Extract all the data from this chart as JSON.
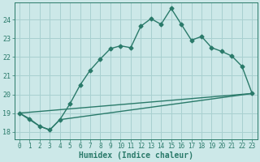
{
  "xlabel": "Humidex (Indice chaleur)",
  "bg_color": "#cce8e8",
  "grid_color": "#a8d0d0",
  "line_color": "#2a7a6a",
  "ylim": [
    17.6,
    24.9
  ],
  "xlim": [
    -0.5,
    23.5
  ],
  "yticks": [
    18,
    19,
    20,
    21,
    22,
    23,
    24
  ],
  "xticks": [
    0,
    1,
    2,
    3,
    4,
    5,
    6,
    7,
    8,
    9,
    10,
    11,
    12,
    13,
    14,
    15,
    16,
    17,
    18,
    19,
    20,
    21,
    22,
    23
  ],
  "line1_x": [
    0,
    1,
    2,
    3,
    4,
    5,
    6,
    7,
    8,
    9,
    10,
    11,
    12,
    13,
    14,
    15,
    16,
    17,
    18,
    19,
    20,
    21,
    22,
    23
  ],
  "line1_y": [
    19.0,
    18.7,
    18.3,
    18.1,
    18.65,
    19.5,
    20.5,
    21.3,
    21.9,
    22.45,
    22.6,
    22.5,
    23.65,
    24.05,
    23.75,
    24.6,
    23.75,
    22.9,
    23.1,
    22.5,
    22.3,
    22.05,
    21.5,
    20.05
  ],
  "line2_x": [
    0,
    2,
    3,
    4,
    23
  ],
  "line2_y": [
    19.0,
    18.3,
    18.1,
    18.65,
    20.05
  ],
  "line3_x": [
    0,
    23
  ],
  "line3_y": [
    19.0,
    20.05
  ],
  "marker": "D",
  "marker_size": 2.5,
  "linewidth": 1.0,
  "xlabel_fontsize": 7,
  "tick_fontsize": 5.5
}
